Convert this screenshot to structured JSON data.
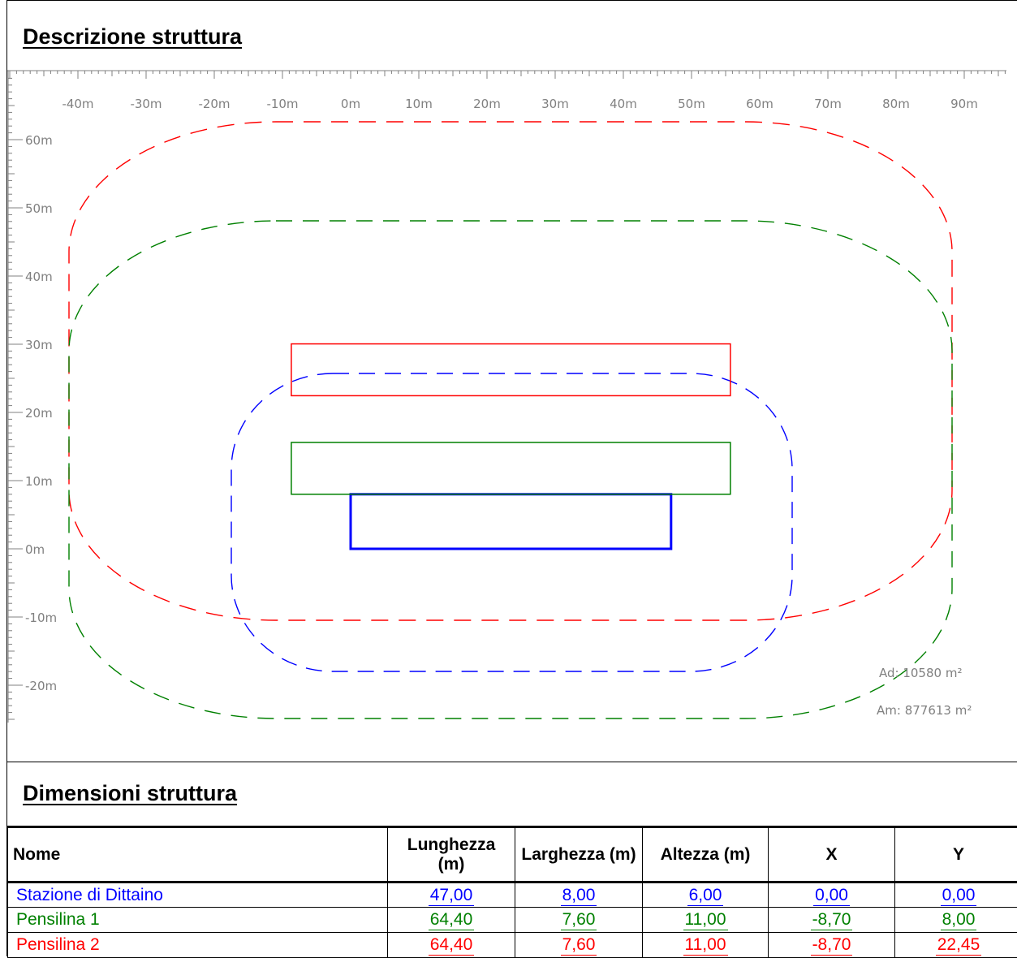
{
  "sections": {
    "description_title": "Descrizione struttura",
    "dimensions_title": "Dimensioni struttura"
  },
  "colors": {
    "ruler": "#808080",
    "red": "#ff0000",
    "green": "#008000",
    "blue": "#0000ff",
    "area_text": "#808080"
  },
  "ruler": {
    "x_labels": [
      "-40m",
      "-30m",
      "-20m",
      "-10m",
      "0m",
      "10m",
      "20m",
      "30m",
      "40m",
      "50m",
      "60m",
      "70m",
      "80m",
      "90m"
    ],
    "y_labels": [
      "60m",
      "50m",
      "40m",
      "30m",
      "20m",
      "10m",
      "0m",
      "-10m",
      "-20m"
    ]
  },
  "diagram": {
    "areas": {
      "ad": "Ad: 10580 m²",
      "am": "Am: 877613 m²"
    },
    "structures": [
      {
        "name": "Stazione di Dittaino",
        "color": "blue",
        "x": 0,
        "y": 0,
        "length": 47,
        "width": 8
      },
      {
        "name": "Pensilina 1",
        "color": "green",
        "x": -8.7,
        "y": 8,
        "length": 64.4,
        "width": 7.6
      },
      {
        "name": "Pensilina 2",
        "color": "red",
        "x": -8.7,
        "y": 22.45,
        "length": 64.4,
        "width": 7.6
      }
    ]
  },
  "table": {
    "headers": [
      "Nome",
      "Lunghezza (m)",
      "Larghezza (m)",
      "Altezza (m)",
      "X",
      "Y"
    ],
    "rows": [
      {
        "name": "Stazione di Dittaino",
        "color": "#0000ff",
        "values": [
          "47,00",
          "8,00",
          "6,00",
          "0,00",
          "0,00"
        ]
      },
      {
        "name": "Pensilina 1",
        "color": "#008000",
        "values": [
          "64,40",
          "7,60",
          "11,00",
          "-8,70",
          "8,00"
        ]
      },
      {
        "name": "Pensilina 2",
        "color": "#ff0000",
        "values": [
          "64,40",
          "7,60",
          "11,00",
          "-8,70",
          "22,45"
        ]
      }
    ]
  }
}
